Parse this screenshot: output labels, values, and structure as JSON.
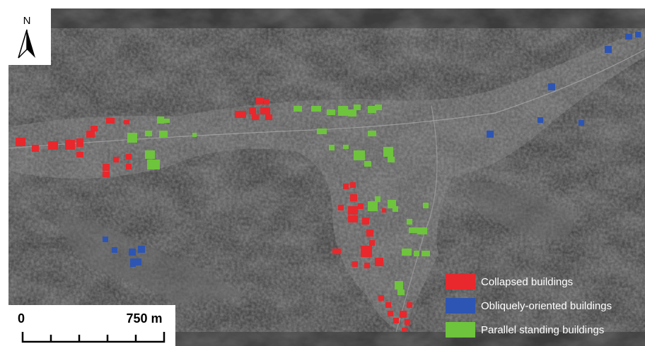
{
  "north_arrow": {
    "label": "N"
  },
  "scale_bar": {
    "start_label": "0",
    "end_label": "750 m"
  },
  "legend": {
    "items": [
      {
        "label": "Collapsed buildings",
        "color": "#e8282c"
      },
      {
        "label": "Obliquely-oriented buildings",
        "color": "#2d55b4"
      },
      {
        "label": "Parallel standing buildings",
        "color": "#6ec43c"
      }
    ]
  }
}
